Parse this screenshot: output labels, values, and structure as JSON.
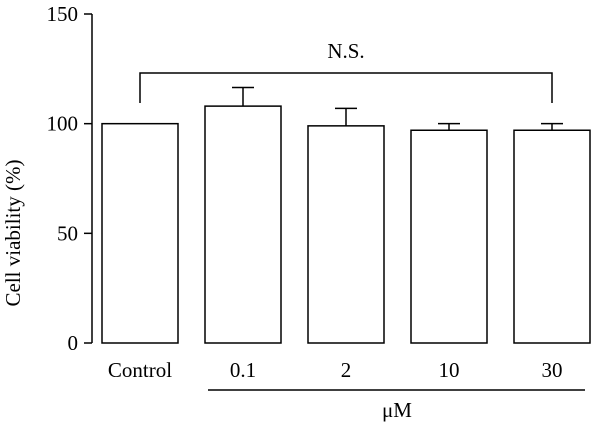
{
  "chart_data": {
    "type": "bar",
    "categories": [
      "Control",
      "0.1",
      "2",
      "10",
      "30"
    ],
    "values": [
      100,
      108,
      99,
      97,
      97
    ],
    "errors": [
      0,
      8.5,
      8,
      3,
      3
    ],
    "ylabel": "Cell viability (%)",
    "group_label": "μM",
    "annotation": "N.S.",
    "yticks": [
      0,
      50,
      100,
      150
    ],
    "ylim": [
      0,
      150
    ],
    "grid": false,
    "legend": "none",
    "bar_fill": "#ffffff",
    "bar_stroke": "#000000"
  }
}
